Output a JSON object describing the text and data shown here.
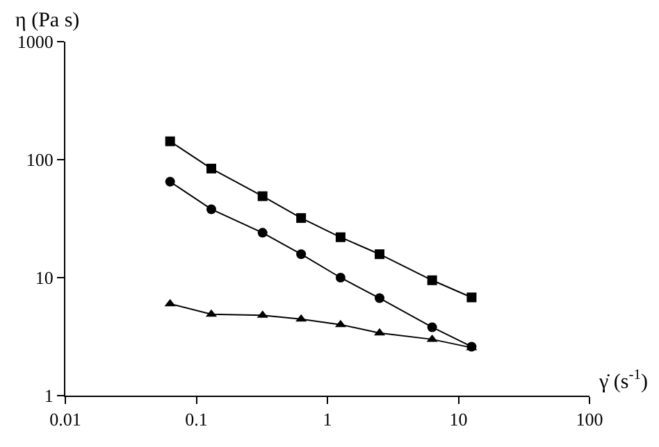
{
  "chart_data": {
    "type": "line",
    "xlabel": "γ̇ (s$^{-1}$)",
    "ylabel": "η (Pa s)",
    "log": "xy",
    "xlim": [
      0.01,
      100
    ],
    "ylim": [
      1,
      1000
    ],
    "xticks": [
      0.01,
      0.1,
      1,
      10,
      100
    ],
    "yticks": [
      1,
      10,
      100,
      1000
    ],
    "legend": false,
    "x": [
      0.063,
      0.13,
      0.32,
      0.63,
      1.26,
      2.5,
      6.3,
      12.6
    ],
    "series": [
      {
        "color": "#000000",
        "marker": "square",
        "values": [
          143,
          84,
          49,
          32,
          22,
          15.8,
          9.5,
          6.8
        ]
      },
      {
        "color": "#000000",
        "marker": "circle",
        "values": [
          65,
          38,
          24,
          15.8,
          10,
          6.7,
          3.8,
          2.6
        ]
      },
      {
        "color": "#000000",
        "marker": "triangle",
        "values": [
          6.0,
          4.9,
          4.8,
          4.45,
          4.0,
          3.4,
          3.0,
          2.55
        ]
      }
    ]
  }
}
